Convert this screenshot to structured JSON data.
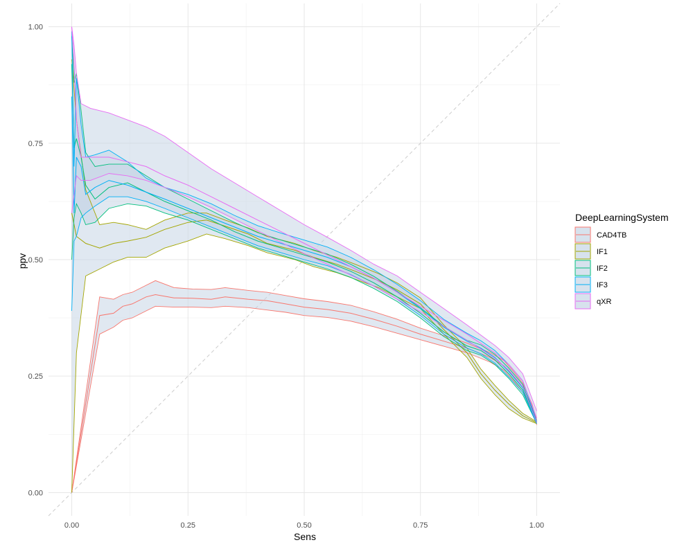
{
  "chart_data": {
    "type": "line",
    "title": "",
    "xlabel": "Sens",
    "ylabel": "ppv",
    "xlim": [
      -0.05,
      1.05
    ],
    "ylim": [
      -0.05,
      1.05
    ],
    "x_ticks": [
      0.0,
      0.25,
      0.5,
      0.75,
      1.0
    ],
    "y_ticks": [
      0.0,
      0.25,
      0.5,
      0.75,
      1.0
    ],
    "x_tick_labels": [
      "0.00",
      "0.25",
      "0.50",
      "0.75",
      "1.00"
    ],
    "y_tick_labels": [
      "0.00",
      "0.25",
      "0.50",
      "0.75",
      "1.00"
    ],
    "grid": true,
    "reference_line": {
      "from": [
        0,
        0
      ],
      "to": [
        1.05,
        1.05
      ],
      "style": "dashed",
      "color": "#cccccc"
    },
    "legend": {
      "title": "DeepLearningSystem",
      "position": "right"
    },
    "band_fill": "#c6d6e6",
    "series": [
      {
        "name": "CAD4TB",
        "color": "#F8766D",
        "x": [
          0.0,
          0.06,
          0.09,
          0.11,
          0.13,
          0.16,
          0.18,
          0.22,
          0.26,
          0.3,
          0.33,
          0.38,
          0.42,
          0.46,
          0.5,
          0.55,
          0.6,
          0.65,
          0.7,
          0.75,
          0.8,
          0.85,
          0.9,
          0.93,
          0.95,
          0.97,
          0.99,
          1.0
        ],
        "y": [
          0.0,
          0.38,
          0.385,
          0.4,
          0.405,
          0.42,
          0.425,
          0.418,
          0.417,
          0.415,
          0.42,
          0.415,
          0.412,
          0.405,
          0.398,
          0.393,
          0.385,
          0.372,
          0.357,
          0.34,
          0.325,
          0.31,
          0.29,
          0.272,
          0.25,
          0.225,
          0.185,
          0.15
        ],
        "lower": [
          0.0,
          0.34,
          0.355,
          0.37,
          0.375,
          0.39,
          0.4,
          0.398,
          0.398,
          0.397,
          0.4,
          0.397,
          0.392,
          0.387,
          0.38,
          0.376,
          0.368,
          0.356,
          0.342,
          0.328,
          0.314,
          0.3,
          0.28,
          0.262,
          0.24,
          0.215,
          0.18,
          0.145
        ],
        "upper": [
          0.0,
          0.42,
          0.415,
          0.425,
          0.43,
          0.445,
          0.455,
          0.44,
          0.437,
          0.436,
          0.44,
          0.434,
          0.43,
          0.423,
          0.416,
          0.41,
          0.402,
          0.388,
          0.372,
          0.353,
          0.337,
          0.321,
          0.3,
          0.283,
          0.26,
          0.235,
          0.19,
          0.155
        ]
      },
      {
        "name": "IF1",
        "color": "#A3A500",
        "x": [
          0.0,
          0.01,
          0.03,
          0.06,
          0.09,
          0.12,
          0.16,
          0.2,
          0.25,
          0.29,
          0.33,
          0.38,
          0.42,
          0.48,
          0.52,
          0.57,
          0.61,
          0.66,
          0.7,
          0.75,
          0.8,
          0.85,
          0.88,
          0.91,
          0.94,
          0.97,
          1.0
        ],
        "y": [
          0.6,
          0.55,
          0.535,
          0.525,
          0.535,
          0.54,
          0.548,
          0.565,
          0.58,
          0.585,
          0.572,
          0.555,
          0.535,
          0.52,
          0.505,
          0.49,
          0.475,
          0.455,
          0.435,
          0.405,
          0.35,
          0.3,
          0.255,
          0.22,
          0.19,
          0.165,
          0.15
        ],
        "lower": [
          0.0,
          0.3,
          0.465,
          0.48,
          0.495,
          0.505,
          0.505,
          0.525,
          0.54,
          0.555,
          0.545,
          0.53,
          0.515,
          0.5,
          0.485,
          0.472,
          0.458,
          0.44,
          0.42,
          0.395,
          0.34,
          0.29,
          0.245,
          0.21,
          0.18,
          0.16,
          0.148
        ],
        "upper": [
          0.93,
          0.8,
          0.65,
          0.575,
          0.58,
          0.575,
          0.565,
          0.585,
          0.6,
          0.6,
          0.585,
          0.568,
          0.55,
          0.535,
          0.52,
          0.505,
          0.49,
          0.47,
          0.45,
          0.418,
          0.36,
          0.31,
          0.265,
          0.23,
          0.198,
          0.17,
          0.152
        ]
      },
      {
        "name": "IF2",
        "color": "#00BF7D",
        "x": [
          0.0,
          0.005,
          0.01,
          0.02,
          0.03,
          0.05,
          0.08,
          0.12,
          0.16,
          0.2,
          0.25,
          0.3,
          0.35,
          0.4,
          0.45,
          0.5,
          0.55,
          0.6,
          0.65,
          0.7,
          0.75,
          0.8,
          0.85,
          0.88,
          0.91,
          0.94,
          0.97,
          1.0
        ],
        "y": [
          0.92,
          0.74,
          0.76,
          0.72,
          0.66,
          0.63,
          0.655,
          0.665,
          0.645,
          0.625,
          0.605,
          0.585,
          0.56,
          0.54,
          0.525,
          0.51,
          0.495,
          0.475,
          0.45,
          0.42,
          0.385,
          0.345,
          0.315,
          0.305,
          0.285,
          0.255,
          0.22,
          0.15
        ],
        "lower": [
          0.5,
          0.59,
          0.62,
          0.6,
          0.575,
          0.58,
          0.61,
          0.62,
          0.615,
          0.6,
          0.585,
          0.565,
          0.545,
          0.525,
          0.51,
          0.495,
          0.48,
          0.462,
          0.438,
          0.41,
          0.375,
          0.335,
          0.305,
          0.295,
          0.275,
          0.245,
          0.21,
          0.148
        ],
        "upper": [
          0.98,
          0.88,
          0.9,
          0.82,
          0.73,
          0.7,
          0.705,
          0.705,
          0.68,
          0.655,
          0.63,
          0.605,
          0.58,
          0.558,
          0.542,
          0.527,
          0.512,
          0.49,
          0.464,
          0.432,
          0.397,
          0.357,
          0.327,
          0.317,
          0.297,
          0.267,
          0.232,
          0.152
        ]
      },
      {
        "name": "IF3",
        "color": "#00B0F6",
        "x": [
          0.0,
          0.005,
          0.01,
          0.02,
          0.03,
          0.05,
          0.08,
          0.12,
          0.16,
          0.2,
          0.25,
          0.3,
          0.35,
          0.4,
          0.45,
          0.5,
          0.55,
          0.6,
          0.65,
          0.7,
          0.75,
          0.8,
          0.85,
          0.88,
          0.91,
          0.94,
          0.97,
          1.0
        ],
        "y": [
          0.85,
          0.6,
          0.72,
          0.7,
          0.64,
          0.655,
          0.67,
          0.66,
          0.645,
          0.63,
          0.61,
          0.59,
          0.57,
          0.55,
          0.535,
          0.52,
          0.505,
          0.485,
          0.46,
          0.43,
          0.395,
          0.355,
          0.325,
          0.31,
          0.29,
          0.26,
          0.225,
          0.15
        ],
        "lower": [
          0.39,
          0.54,
          0.55,
          0.59,
          0.6,
          0.615,
          0.635,
          0.635,
          0.625,
          0.61,
          0.59,
          0.57,
          0.55,
          0.53,
          0.515,
          0.5,
          0.487,
          0.468,
          0.443,
          0.415,
          0.38,
          0.34,
          0.31,
          0.298,
          0.278,
          0.248,
          0.215,
          0.148
        ],
        "upper": [
          0.99,
          0.7,
          0.89,
          0.79,
          0.72,
          0.725,
          0.735,
          0.71,
          0.675,
          0.655,
          0.64,
          0.62,
          0.595,
          0.573,
          0.557,
          0.542,
          0.527,
          0.505,
          0.478,
          0.447,
          0.412,
          0.372,
          0.342,
          0.326,
          0.305,
          0.275,
          0.24,
          0.153
        ]
      },
      {
        "name": "qXR",
        "color": "#E76BF3",
        "x": [
          0.0,
          0.005,
          0.01,
          0.02,
          0.04,
          0.08,
          0.12,
          0.16,
          0.2,
          0.25,
          0.3,
          0.35,
          0.4,
          0.45,
          0.5,
          0.55,
          0.6,
          0.65,
          0.7,
          0.75,
          0.8,
          0.85,
          0.88,
          0.91,
          0.94,
          0.97,
          1.0
        ],
        "y": [
          1.0,
          0.92,
          0.8,
          0.72,
          0.72,
          0.72,
          0.71,
          0.7,
          0.68,
          0.66,
          0.635,
          0.61,
          0.585,
          0.56,
          0.535,
          0.51,
          0.485,
          0.46,
          0.43,
          0.4,
          0.37,
          0.34,
          0.32,
          0.3,
          0.275,
          0.24,
          0.16
        ],
        "lower": [
          0.6,
          0.64,
          0.68,
          0.67,
          0.67,
          0.685,
          0.68,
          0.67,
          0.655,
          0.635,
          0.612,
          0.587,
          0.562,
          0.537,
          0.513,
          0.49,
          0.467,
          0.443,
          0.415,
          0.388,
          0.357,
          0.327,
          0.308,
          0.288,
          0.263,
          0.228,
          0.15
        ],
        "upper": [
          1.0,
          0.96,
          0.9,
          0.835,
          0.825,
          0.815,
          0.8,
          0.785,
          0.765,
          0.73,
          0.695,
          0.665,
          0.635,
          0.605,
          0.575,
          0.548,
          0.52,
          0.49,
          0.465,
          0.43,
          0.395,
          0.36,
          0.338,
          0.316,
          0.29,
          0.255,
          0.175
        ]
      }
    ]
  }
}
